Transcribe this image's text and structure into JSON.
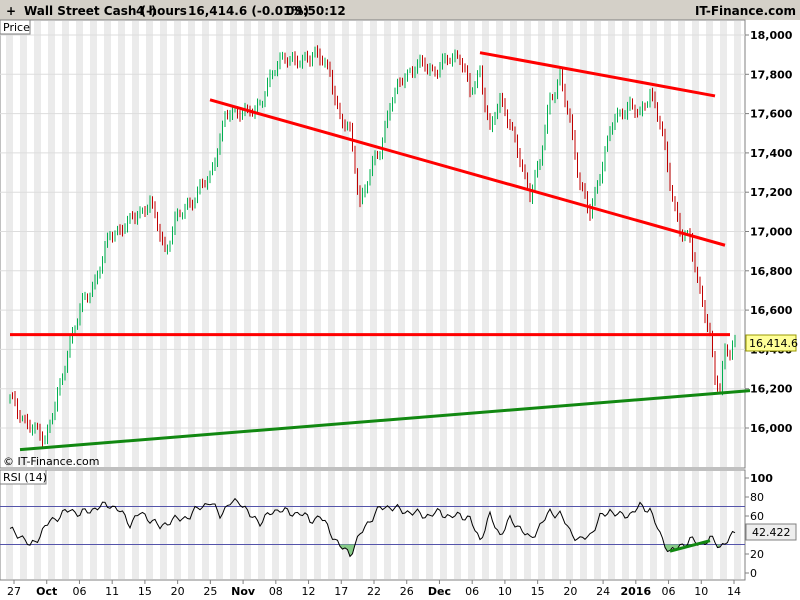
{
  "header": {
    "instrument": "Wall Street Cash (-)",
    "timeframe": "4 hours",
    "last_change": "16,414.6 (-0.01%)",
    "time": "09:50:12",
    "brand": "IT-Finance.com"
  },
  "price_panel": {
    "label": "Price",
    "watermark": "© IT-Finance.com",
    "last_price_label": "16,414.6"
  },
  "rsi_panel": {
    "label": "RSI (14)",
    "last_value_label": "42.422"
  },
  "colors": {
    "header_bg": "#d4d0c8",
    "panel_line": "#808080",
    "up_candle": "#00b050",
    "down_candle": "#c00000",
    "resistance": "#ff0000",
    "support": "#118811",
    "rsi_line": "#000000",
    "rsi_band": "#5555aa",
    "rsi_fill": "#88cc88",
    "price_tag": "#ffff99"
  },
  "chart_data": [
    {
      "type": "candlestick",
      "title": "Wall Street Cash (-)",
      "ylabel": "Price",
      "ylim": [
        15880,
        18080
      ],
      "y_ticks": [
        16000,
        16200,
        16400,
        16600,
        16800,
        17000,
        17200,
        17400,
        17600,
        17800,
        18000
      ],
      "y_tick_labels": [
        "16,000",
        "16,200",
        "16,400",
        "16,600",
        "16,800",
        "17,000",
        "17,200",
        "17,400",
        "17,600",
        "17,800",
        "18,000"
      ],
      "x_tick_labels": [
        "27",
        "Oct",
        "06",
        "11",
        "15",
        "20",
        "25",
        "Nov",
        "08",
        "12",
        "17",
        "22",
        "26",
        "Dec",
        "06",
        "10",
        "15",
        "20",
        "24",
        "2016",
        "06",
        "10",
        "14"
      ],
      "bold_x_ticks": [
        "Oct",
        "Nov",
        "Dec",
        "2016"
      ],
      "last_value": 16414.6,
      "grid": true,
      "price_path": [
        [
          0,
          16150
        ],
        [
          4,
          16000
        ],
        [
          7,
          15950
        ],
        [
          10,
          16200
        ],
        [
          12,
          16450
        ],
        [
          14,
          16600
        ],
        [
          17,
          16750
        ],
        [
          20,
          16980
        ],
        [
          24,
          17050
        ],
        [
          28,
          17150
        ],
        [
          31,
          16900
        ],
        [
          33,
          17050
        ],
        [
          36,
          17150
        ],
        [
          40,
          17280
        ],
        [
          43,
          17580
        ],
        [
          46,
          17620
        ],
        [
          49,
          17600
        ],
        [
          52,
          17780
        ],
        [
          55,
          17900
        ],
        [
          58,
          17850
        ],
        [
          61,
          17920
        ],
        [
          64,
          17800
        ],
        [
          66,
          17580
        ],
        [
          68,
          17500
        ],
        [
          70,
          17150
        ],
        [
          72,
          17300
        ],
        [
          74,
          17420
        ],
        [
          76,
          17650
        ],
        [
          79,
          17800
        ],
        [
          82,
          17850
        ],
        [
          85,
          17820
        ],
        [
          88,
          17880
        ],
        [
          90,
          17900
        ],
        [
          92,
          17700
        ],
        [
          94,
          17820
        ],
        [
          96,
          17500
        ],
        [
          98,
          17680
        ],
        [
          100,
          17550
        ],
        [
          102,
          17350
        ],
        [
          104,
          17200
        ],
        [
          106,
          17350
        ],
        [
          108,
          17680
        ],
        [
          110,
          17780
        ],
        [
          112,
          17550
        ],
        [
          114,
          17250
        ],
        [
          116,
          17080
        ],
        [
          118,
          17300
        ],
        [
          120,
          17520
        ],
        [
          122,
          17600
        ],
        [
          124,
          17650
        ],
        [
          126,
          17580
        ],
        [
          128,
          17720
        ],
        [
          130,
          17550
        ],
        [
          132,
          17250
        ],
        [
          134,
          17000
        ],
        [
          136,
          16950
        ],
        [
          138,
          16700
        ],
        [
          140,
          16450
        ],
        [
          141,
          16250
        ],
        [
          142,
          16200
        ],
        [
          143,
          16420
        ],
        [
          144,
          16380
        ],
        [
          145,
          16414.6
        ]
      ],
      "trend_lines": [
        {
          "role": "resistance",
          "color": "red",
          "points": [
            [
              94,
              17910
            ],
            [
              141,
              17690
            ]
          ]
        },
        {
          "role": "resistance",
          "color": "red",
          "points": [
            [
              40,
              17670
            ],
            [
              143,
              16930
            ]
          ]
        },
        {
          "role": "resistance",
          "color": "red",
          "points": [
            [
              0,
              16475
            ],
            [
              144,
              16475
            ]
          ]
        },
        {
          "role": "support",
          "color": "green",
          "points": [
            [
              2,
              15890
            ],
            [
              148,
              16190
            ]
          ]
        }
      ]
    },
    {
      "type": "line",
      "title": "RSI (14)",
      "ylim": [
        0,
        100
      ],
      "y_ticks": [
        0,
        20,
        40,
        60,
        80,
        100
      ],
      "y_tick_labels": [
        "0",
        "20",
        "40",
        "60",
        "80",
        "100"
      ],
      "bands": [
        30,
        70
      ],
      "last_value": 42.422,
      "rsi_path": [
        [
          0,
          45
        ],
        [
          2,
          40
        ],
        [
          4,
          28
        ],
        [
          6,
          40
        ],
        [
          8,
          55
        ],
        [
          10,
          60
        ],
        [
          12,
          67
        ],
        [
          14,
          62
        ],
        [
          16,
          66
        ],
        [
          18,
          70
        ],
        [
          20,
          72
        ],
        [
          22,
          65
        ],
        [
          24,
          52
        ],
        [
          26,
          63
        ],
        [
          28,
          57
        ],
        [
          30,
          48
        ],
        [
          32,
          55
        ],
        [
          34,
          57
        ],
        [
          36,
          60
        ],
        [
          38,
          70
        ],
        [
          40,
          74
        ],
        [
          42,
          62
        ],
        [
          44,
          73
        ],
        [
          46,
          76
        ],
        [
          48,
          60
        ],
        [
          50,
          54
        ],
        [
          52,
          62
        ],
        [
          54,
          68
        ],
        [
          56,
          62
        ],
        [
          58,
          64
        ],
        [
          60,
          55
        ],
        [
          62,
          60
        ],
        [
          64,
          44
        ],
        [
          66,
          28
        ],
        [
          68,
          20
        ],
        [
          70,
          40
        ],
        [
          72,
          56
        ],
        [
          74,
          68
        ],
        [
          76,
          70
        ],
        [
          78,
          66
        ],
        [
          80,
          64
        ],
        [
          82,
          62
        ],
        [
          84,
          60
        ],
        [
          86,
          65
        ],
        [
          88,
          58
        ],
        [
          90,
          62
        ],
        [
          92,
          56
        ],
        [
          94,
          35
        ],
        [
          96,
          60
        ],
        [
          98,
          40
        ],
        [
          100,
          56
        ],
        [
          102,
          48
        ],
        [
          104,
          35
        ],
        [
          106,
          50
        ],
        [
          108,
          64
        ],
        [
          110,
          62
        ],
        [
          112,
          44
        ],
        [
          114,
          34
        ],
        [
          116,
          40
        ],
        [
          118,
          58
        ],
        [
          120,
          66
        ],
        [
          122,
          60
        ],
        [
          124,
          62
        ],
        [
          126,
          70
        ],
        [
          128,
          67
        ],
        [
          130,
          40
        ],
        [
          132,
          22
        ],
        [
          134,
          28
        ],
        [
          136,
          35
        ],
        [
          138,
          30
        ],
        [
          140,
          36
        ],
        [
          142,
          28
        ],
        [
          144,
          36
        ],
        [
          145,
          42.4
        ]
      ],
      "trend_lines": [
        {
          "role": "support",
          "color": "green",
          "points": [
            [
              132,
              23
            ],
            [
              140,
              34
            ]
          ]
        }
      ]
    }
  ]
}
